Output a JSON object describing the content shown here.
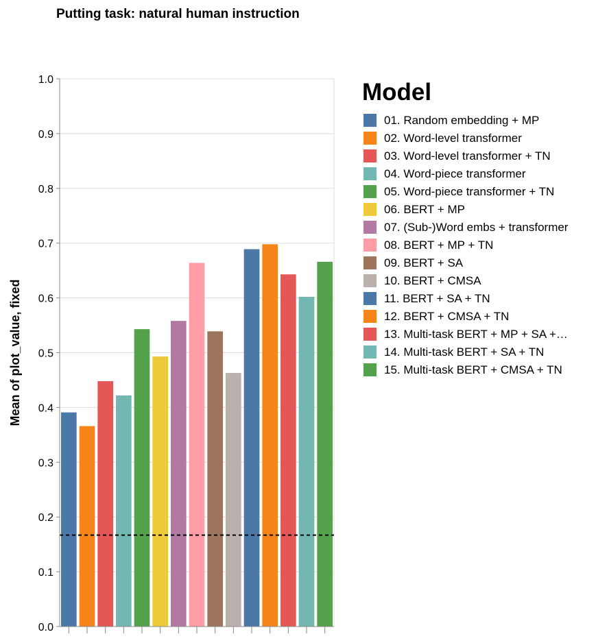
{
  "chart_data": {
    "type": "bar",
    "title": "Putting task: natural human instruction",
    "xlabel": "",
    "ylabel": "Mean of plot_value, fixed",
    "ylim": [
      0,
      1
    ],
    "yticks": [
      "0.0",
      "0.1",
      "0.2",
      "0.3",
      "0.4",
      "0.5",
      "0.6",
      "0.7",
      "0.8",
      "0.9",
      "1.0"
    ],
    "grid": true,
    "legend_position": "right",
    "legend_title": "Model",
    "reference_line": {
      "value": 0.167,
      "style": "dashed"
    },
    "categories": [
      "01. Random embedding + MP",
      "02. Word-level transformer",
      "03. Word-level transformer + TN",
      "04. Word-piece transformer",
      "05. Word-piece transformer + TN",
      "06. BERT + MP",
      "07. (Sub-)Word embs + transformer",
      "08. BERT + MP + TN",
      "09. BERT + SA",
      "10. BERT + CMSA",
      "11. BERT + SA + TN",
      "12. BERT + CMSA + TN",
      "13. Multi-task BERT + MP + SA +…",
      "14. Multi-task BERT + SA + TN",
      "15. Multi-task BERT + CMSA + TN"
    ],
    "values": [
      0.391,
      0.366,
      0.448,
      0.422,
      0.543,
      0.493,
      0.558,
      0.664,
      0.539,
      0.463,
      0.689,
      0.698,
      0.643,
      0.602,
      0.666
    ],
    "colors": [
      "#4c78a8",
      "#f58518",
      "#e45756",
      "#72b7b2",
      "#54a24b",
      "#eeca3b",
      "#b279a2",
      "#ff9da6",
      "#9d755d",
      "#bab0ac",
      "#4c78a8",
      "#f58518",
      "#e45756",
      "#72b7b2",
      "#54a24b"
    ]
  }
}
